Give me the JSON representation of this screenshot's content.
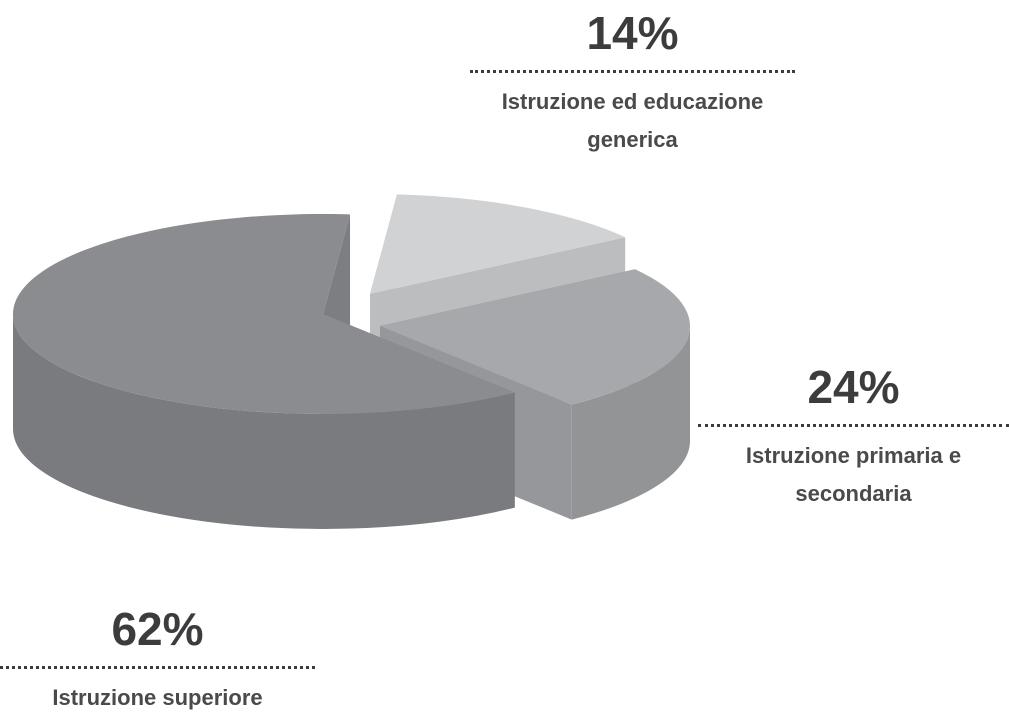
{
  "chart_data": {
    "type": "pie",
    "categories": [
      "Istruzione ed educazione generica",
      "Istruzione primaria e secondaria",
      "Istruzione superiore"
    ],
    "values": [
      14,
      24,
      62
    ],
    "value_labels": [
      "14%",
      "24%",
      "62%"
    ],
    "colors": [
      "#d1d2d4",
      "#a7a8ab",
      "#8b8c90"
    ]
  }
}
